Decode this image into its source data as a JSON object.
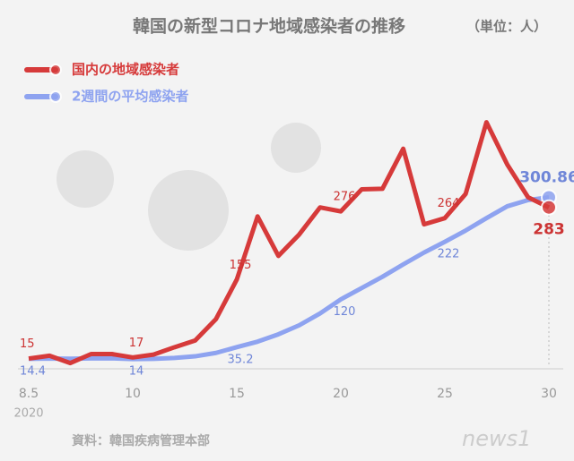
{
  "chart_data": {
    "type": "line",
    "title": "韓国の新型コロナ地域感染者の推移",
    "unit": "（単位：人）",
    "source": "資料：韓国疾病管理本部",
    "logo": "news1",
    "year": "2020",
    "categories": [
      "8.5",
      null,
      null,
      null,
      null,
      "10",
      null,
      null,
      null,
      null,
      "15",
      null,
      null,
      null,
      null,
      "20",
      null,
      null,
      null,
      null,
      "25",
      null,
      null,
      null,
      null,
      "30"
    ],
    "series": [
      {
        "name": "国内の地域感染者",
        "color": "#d63a3a",
        "values": [
          15,
          20,
          7,
          23,
          23,
          17,
          22,
          35,
          47,
          85,
          155,
          267,
          197,
          235,
          283,
          276,
          315,
          316,
          387,
          253,
          264,
          307,
          434,
          359,
          301,
          283
        ]
      },
      {
        "name": "2週間の平均感染者",
        "color": "#8ea3f0",
        "values": [
          14.4,
          15,
          14.6,
          15.2,
          15.4,
          14,
          14.5,
          16,
          19,
          25,
          35.2,
          45,
          58,
          74,
          95,
          120,
          140,
          160,
          182,
          203,
          222,
          242,
          264,
          285,
          296,
          300.86
        ]
      }
    ],
    "ylim": [
      0,
      500
    ]
  }
}
